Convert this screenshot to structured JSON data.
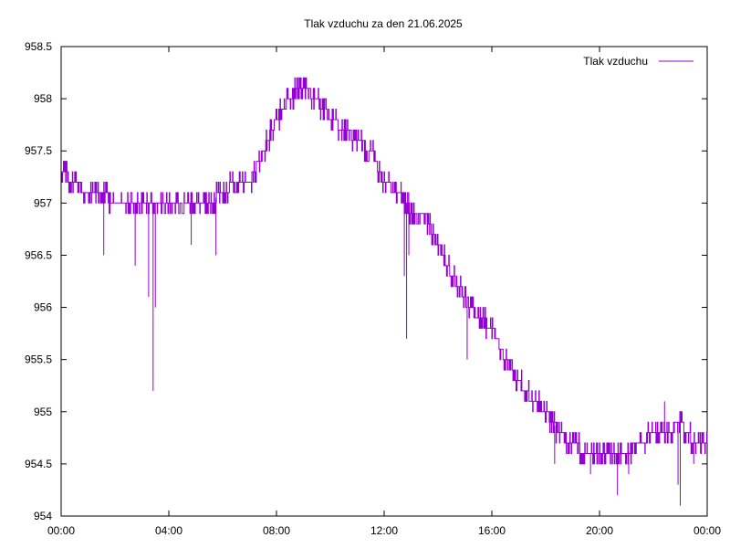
{
  "chart_data": {
    "type": "line",
    "title": "Tlak vzduchu za den 21.06.2025",
    "xlabel": "",
    "ylabel": "",
    "xlim": [
      "00:00",
      "24:00"
    ],
    "ylim": [
      954,
      958.5
    ],
    "x_ticks": [
      "00:00",
      "04:00",
      "08:00",
      "12:00",
      "16:00",
      "20:00",
      "00:00"
    ],
    "y_ticks": [
      "954",
      "954.5",
      "955",
      "955.5",
      "956",
      "956.5",
      "957",
      "957.5",
      "958",
      "958.5"
    ],
    "legend": "top-right",
    "grid": false,
    "series": [
      {
        "name": "Tlak vzduchu",
        "color": "#9400d3",
        "x": [
          "00:00",
          "00:30",
          "01:00",
          "01:30",
          "02:00",
          "02:30",
          "03:00",
          "03:30",
          "04:00",
          "04:30",
          "05:00",
          "05:30",
          "06:00",
          "06:30",
          "07:00",
          "07:30",
          "08:00",
          "08:30",
          "08:50",
          "09:00",
          "09:30",
          "10:00",
          "10:30",
          "11:00",
          "11:30",
          "12:00",
          "12:30",
          "12:50",
          "13:00",
          "13:30",
          "14:00",
          "14:30",
          "15:00",
          "15:30",
          "16:00",
          "16:30",
          "17:00",
          "17:30",
          "18:00",
          "18:30",
          "19:00",
          "19:30",
          "20:00",
          "20:30",
          "21:00",
          "21:30",
          "22:00",
          "22:30",
          "23:00",
          "23:30",
          "24:00"
        ],
        "y": [
          957.3,
          957.2,
          957.1,
          957.1,
          957.0,
          957.0,
          957.0,
          957.0,
          957.0,
          957.0,
          957.0,
          957.0,
          957.1,
          957.2,
          957.2,
          957.5,
          957.8,
          958.0,
          958.1,
          958.1,
          958.0,
          957.8,
          957.7,
          957.6,
          957.5,
          957.2,
          957.1,
          957.0,
          956.9,
          956.9,
          956.6,
          956.3,
          956.1,
          955.9,
          955.8,
          955.5,
          955.3,
          955.1,
          955.0,
          954.8,
          954.7,
          954.6,
          954.6,
          954.6,
          954.6,
          954.7,
          954.8,
          954.8,
          954.9,
          954.7,
          954.7
        ]
      }
    ],
    "spikes": [
      {
        "x": "01:35",
        "y": 956.5
      },
      {
        "x": "02:45",
        "y": 956.4
      },
      {
        "x": "03:15",
        "y": 956.1
      },
      {
        "x": "03:25",
        "y": 955.2
      },
      {
        "x": "03:30",
        "y": 956.0
      },
      {
        "x": "04:50",
        "y": 956.6
      },
      {
        "x": "05:45",
        "y": 956.5
      },
      {
        "x": "12:45",
        "y": 956.3
      },
      {
        "x": "12:50",
        "y": 955.7
      },
      {
        "x": "12:55",
        "y": 956.5
      },
      {
        "x": "15:05",
        "y": 955.5
      },
      {
        "x": "18:20",
        "y": 954.5
      },
      {
        "x": "19:40",
        "y": 954.4
      },
      {
        "x": "20:40",
        "y": 954.2
      },
      {
        "x": "21:05",
        "y": 954.4
      },
      {
        "x": "22:25",
        "y": 955.1
      },
      {
        "x": "22:55",
        "y": 954.3
      },
      {
        "x": "23:00",
        "y": 954.1
      },
      {
        "x": "23:30",
        "y": 954.5
      },
      {
        "x": "23:45",
        "y": 954.6
      }
    ]
  }
}
